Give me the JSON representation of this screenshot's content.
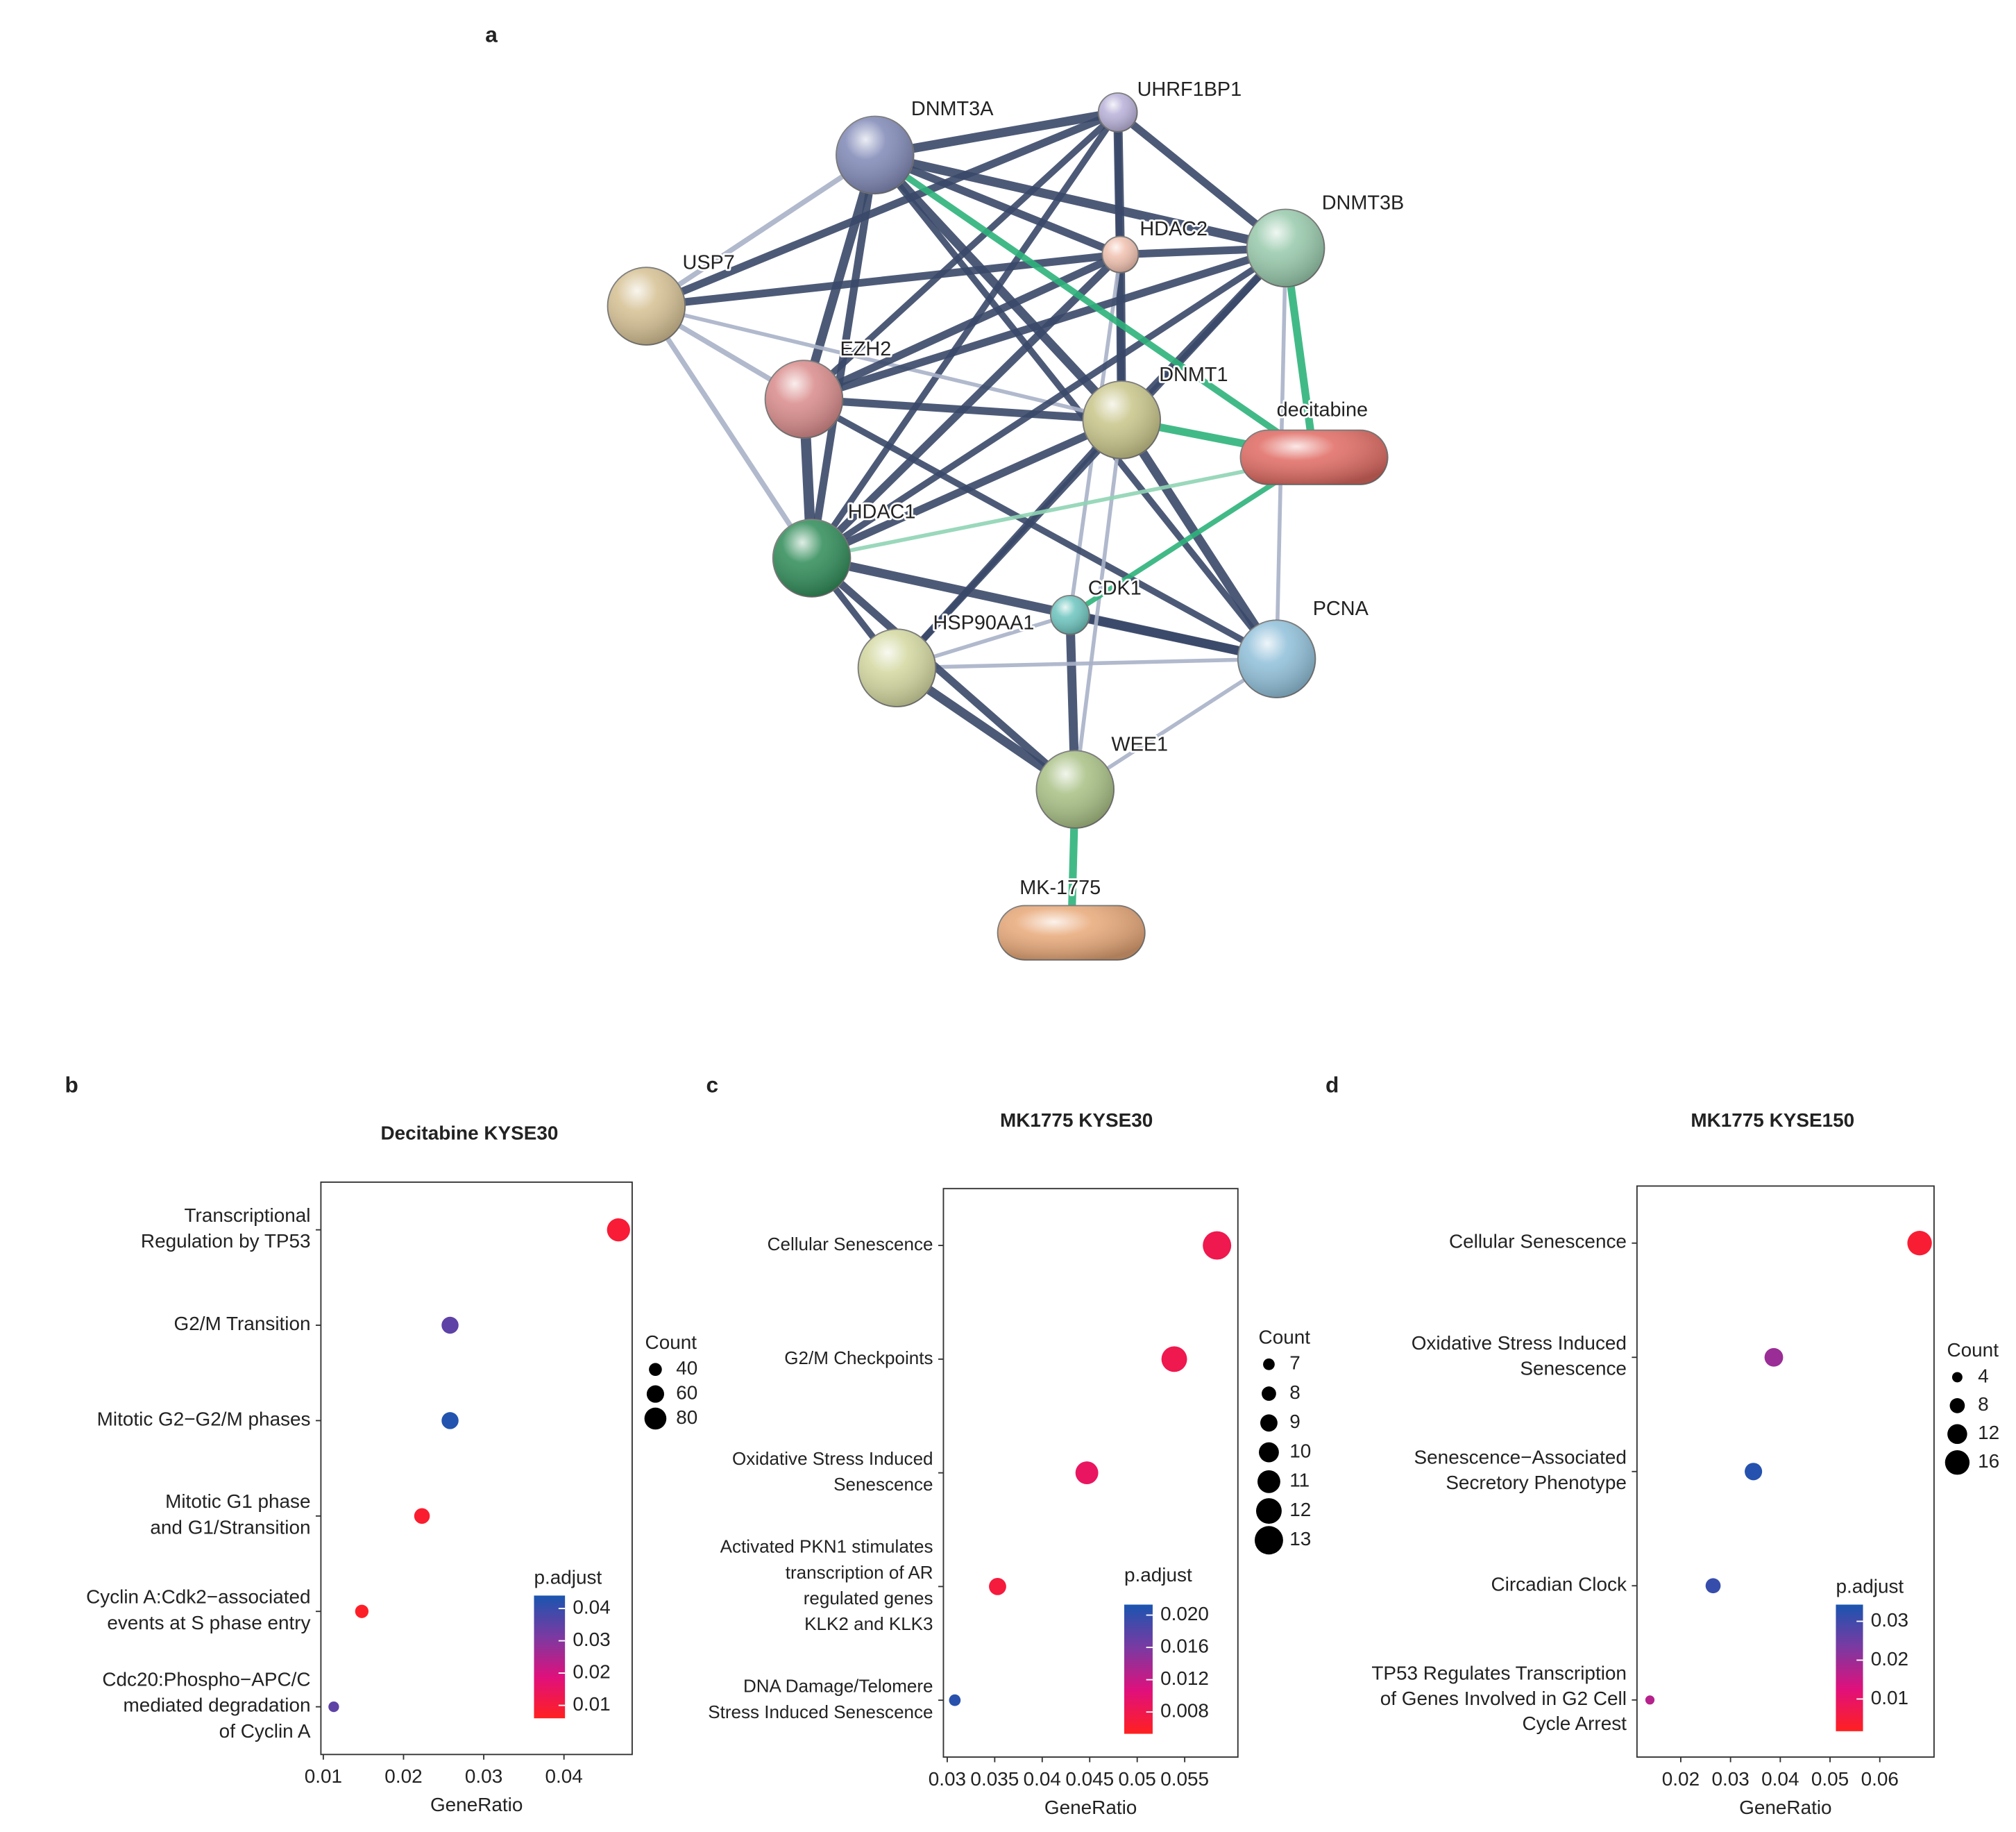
{
  "network": {
    "panel": "a",
    "nodes": [
      "DNMT3A",
      "UHRF1BP1",
      "HDAC2",
      "DNMT3B",
      "USP7",
      "EZH2",
      "DNMT1",
      "decitabine",
      "HDAC1",
      "CDK1",
      "HSP90AA1",
      "PCNA",
      "WEE1",
      "MK-1775"
    ]
  },
  "chart_data": [
    {
      "type": "scatter",
      "panel": "b",
      "title": "Decitabine KYSE30",
      "xlabel": "GeneRatio",
      "categories": [
        [
          "Transcriptional",
          "Regulation by TP53"
        ],
        [
          "G2/M Transition"
        ],
        [
          "Mitotic G2−G2/M phases"
        ],
        [
          "Mitotic G1 phase",
          "and G1/Stransition"
        ],
        [
          "Cyclin A:Cdk2−associated",
          "events at S phase entry"
        ],
        [
          "Cdc20:Phospho−APC/C",
          "mediated degradation",
          "of Cyclin A"
        ]
      ],
      "values": [
        0.0468,
        0.0258,
        0.0258,
        0.0223,
        0.0148,
        0.0113
      ],
      "count": [
        85,
        58,
        58,
        52,
        42,
        30
      ],
      "p_adjust": [
        0.009,
        0.035,
        0.043,
        0.008,
        0.007,
        0.035
      ],
      "xlim": [
        0.0097,
        0.0485
      ],
      "xticks": [
        0.01,
        0.02,
        0.03,
        0.04
      ],
      "size_legend": {
        "title": "Count",
        "values": [
          40,
          60,
          80
        ]
      },
      "color_legend": {
        "title": "p.adjust",
        "range": [
          0.006,
          0.044
        ],
        "ticks": [
          0.04,
          0.03,
          0.02,
          0.01
        ],
        "colors": [
          "#ff2020",
          "#e0107c",
          "#7a3aa2",
          "#1a55b0"
        ]
      }
    },
    {
      "type": "scatter",
      "panel": "c",
      "title": "MK1775 KYSE30",
      "xlabel": "GeneRatio",
      "categories": [
        [
          "Cellular Senescence"
        ],
        [
          "G2/M Checkpoints"
        ],
        [
          "Oxidative Stress Induced",
          "Senescence"
        ],
        [
          "Activated PKN1 stimulates",
          "transcription of AR",
          "regulated genes",
          "KLK2 and KLK3"
        ],
        [
          "DNA Damage/Telomere",
          "Stress Induced Senescence"
        ]
      ],
      "values": [
        0.0584,
        0.0539,
        0.0447,
        0.0353,
        0.0308
      ],
      "count": [
        13,
        12,
        11,
        9,
        7
      ],
      "p_adjust": [
        0.008,
        0.008,
        0.009,
        0.007,
        0.0205
      ],
      "xlim": [
        0.0296,
        0.0606
      ],
      "xticks": [
        0.03,
        0.035,
        0.04,
        0.045,
        0.05,
        0.055
      ],
      "size_legend": {
        "title": "Count",
        "values": [
          7,
          8,
          9,
          10,
          11,
          12,
          13
        ]
      },
      "color_legend": {
        "title": "p.adjust",
        "range": [
          0.0053,
          0.0213
        ],
        "ticks": [
          {
            "value": 0.02,
            "label": "0.020"
          },
          0.016,
          0.012,
          0.008
        ],
        "colors": [
          "#ff2020",
          "#e0107c",
          "#7a3aa2",
          "#1a55b0"
        ]
      }
    },
    {
      "type": "scatter",
      "panel": "d",
      "title": "MK1775 KYSE150",
      "xlabel": "GeneRatio",
      "categories": [
        [
          "Cellular Senescence"
        ],
        [
          "Oxidative Stress Induced",
          "Senescence"
        ],
        [
          "Senescence−Associated",
          "Secretory Phenotype"
        ],
        [
          "Circadian Clock"
        ],
        [
          "TP53 Regulates Transcription",
          "of Genes Involved in G2 Cell",
          "Cycle Arrest"
        ]
      ],
      "values": [
        0.068,
        0.0387,
        0.0346,
        0.0265,
        0.0138
      ],
      "count": [
        16,
        11,
        10,
        8,
        3
      ],
      "p_adjust": [
        0.004,
        0.02,
        0.033,
        0.031,
        0.017
      ],
      "xlim": [
        0.0112,
        0.0709
      ],
      "xticks": [
        0.02,
        0.03,
        0.04,
        0.05,
        0.06
      ],
      "size_legend": {
        "title": "Count",
        "values": [
          4,
          8,
          12,
          16
        ]
      },
      "color_legend": {
        "title": "p.adjust",
        "range": [
          0.0017,
          0.0343
        ],
        "ticks": [
          0.03,
          0.02,
          0.01
        ],
        "colors": [
          "#ff2020",
          "#e0107c",
          "#7a3aa2",
          "#1a55b0"
        ]
      }
    }
  ]
}
